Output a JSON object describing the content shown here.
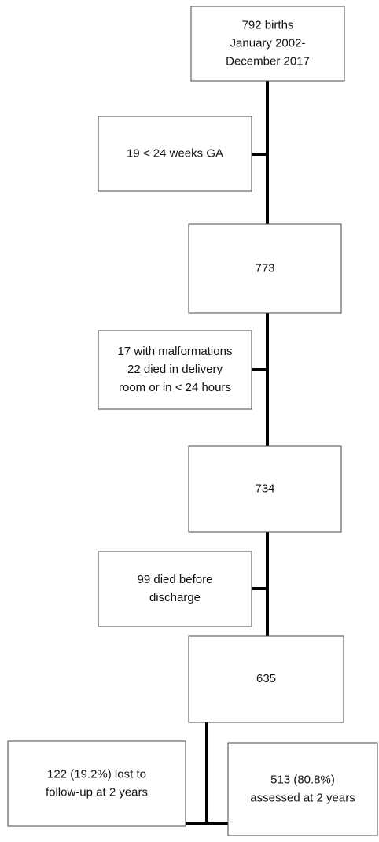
{
  "nodes": [
    {
      "lines": [
        "792 births",
        "January 2002-",
        "December 2017"
      ]
    },
    {
      "lines": [
        "19 < 24 weeks GA"
      ]
    },
    {
      "lines": [
        "773"
      ]
    },
    {
      "lines": [
        "17 with malformations",
        "22 died in delivery",
        "room or in < 24 hours"
      ]
    },
    {
      "lines": [
        "734"
      ]
    },
    {
      "lines": [
        "99 died before",
        "discharge"
      ]
    },
    {
      "lines": [
        "635"
      ]
    },
    {
      "lines": [
        "122 (19.2%) lost to",
        "follow-up at 2 years"
      ]
    },
    {
      "lines": [
        "513 (80.8%)",
        "assessed at 2 years"
      ]
    }
  ]
}
